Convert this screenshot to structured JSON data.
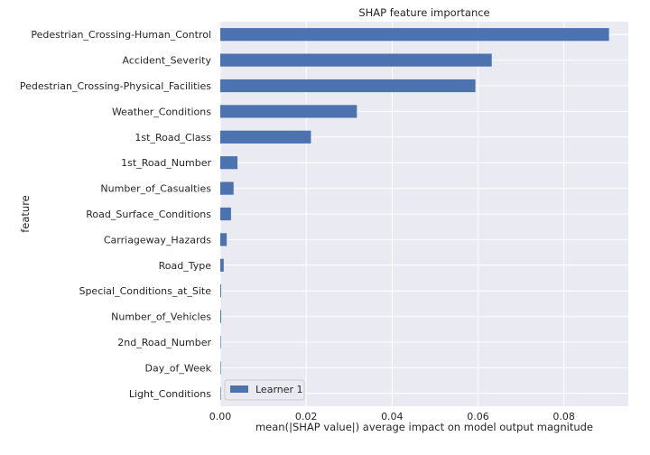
{
  "chart_data": {
    "type": "bar",
    "orientation": "horizontal",
    "title": "SHAP feature importance",
    "xlabel": "mean(|SHAP value|) average impact on model output magnitude",
    "ylabel": "feature",
    "categories": [
      "Pedestrian_Crossing-Human_Control",
      "Accident_Severity",
      "Pedestrian_Crossing-Physical_Facilities",
      "Weather_Conditions",
      "1st_Road_Class",
      "1st_Road_Number",
      "Number_of_Casualties",
      "Road_Surface_Conditions",
      "Carriageway_Hazards",
      "Road_Type",
      "Special_Conditions_at_Site",
      "Number_of_Vehicles",
      "2nd_Road_Number",
      "Day_of_Week",
      "Light_Conditions"
    ],
    "series": [
      {
        "name": "Learner 1",
        "values": [
          0.0905,
          0.0632,
          0.0594,
          0.0318,
          0.0211,
          0.004,
          0.0031,
          0.0025,
          0.0015,
          0.0008,
          0.0002,
          0.0002,
          0.0001,
          0.0001,
          0.0001
        ]
      }
    ],
    "xlim": [
      0,
      0.095
    ],
    "xticks": [
      "0.00",
      "0.02",
      "0.04",
      "0.06",
      "0.08"
    ],
    "xtick_values": [
      0,
      0.02,
      0.04,
      0.06,
      0.08
    ],
    "grid": true,
    "legend": "lower-left",
    "colors": {
      "bar": "#4c72b0",
      "background": "#eaeaf2",
      "grid": "#ffffff"
    }
  }
}
